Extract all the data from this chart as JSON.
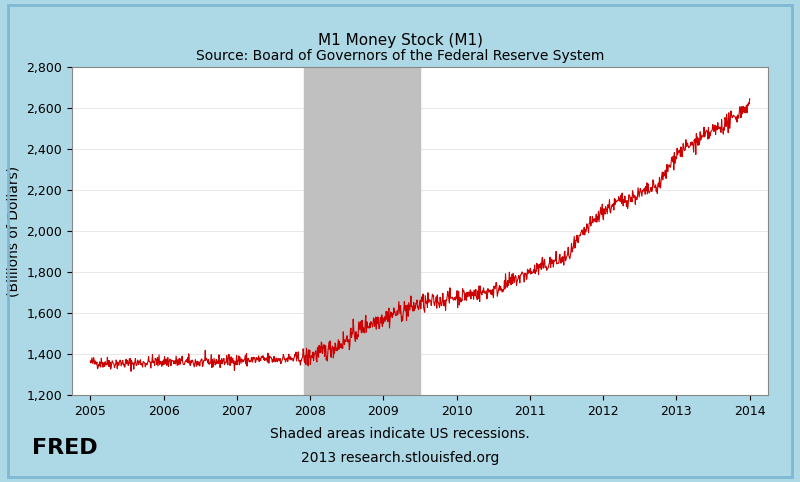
{
  "title_line1": "M1 Money Stock (M1)",
  "title_line2": "Source: Board of Governors of the Federal Reserve System",
  "ylabel": "(Billions of Dollars)",
  "xlabel_note1": "Shaded areas indicate US recessions.",
  "xlabel_note2": "2013 research.stlouisfed.org",
  "recession_start": 2007.917,
  "recession_end": 2009.5,
  "xlim": [
    2004.75,
    2014.25
  ],
  "ylim": [
    1200,
    2800
  ],
  "yticks": [
    1200,
    1400,
    1600,
    1800,
    2000,
    2200,
    2400,
    2600,
    2800
  ],
  "xticks": [
    2005,
    2006,
    2007,
    2008,
    2009,
    2010,
    2011,
    2012,
    2013,
    2014
  ],
  "line_color": "#CC0000",
  "recession_color": "#C0C0C0",
  "background_color": "#ADD8E6",
  "plot_bg_color": "#FFFFFF",
  "border_color": "#ADD8E6",
  "title_fontsize": 11,
  "axis_fontsize": 10,
  "tick_fontsize": 9,
  "fred_text": "FRED",
  "grid_color": "#E0E0E0"
}
